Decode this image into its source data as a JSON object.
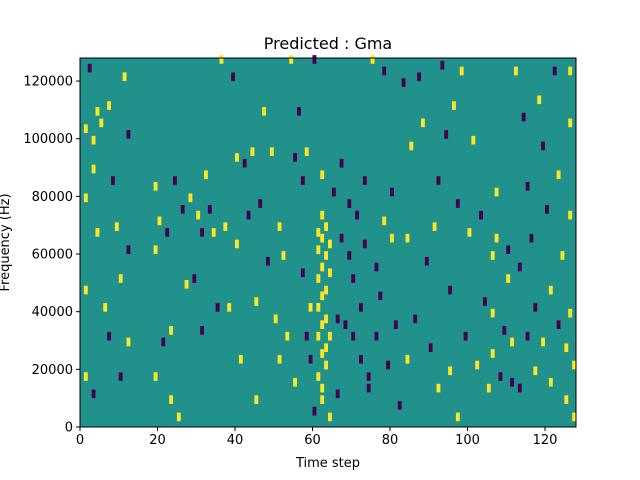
{
  "chart_data": {
    "type": "heatmap",
    "title": "Predicted : Gma",
    "xlabel": "Time step",
    "ylabel": "Frequency (Hz)",
    "xlim": [
      0,
      128
    ],
    "ylim": [
      0,
      128000
    ],
    "x_ticks": [
      "0",
      "20",
      "40",
      "60",
      "80",
      "100",
      "120"
    ],
    "y_ticks": [
      "0",
      "20000",
      "40000",
      "60000",
      "80000",
      "100000",
      "120000"
    ],
    "grid": false,
    "levels": [
      -1,
      0,
      1
    ],
    "colors": {
      "-1": "#440154",
      "0": "#21918c",
      "1": "#fde725"
    },
    "background_value": 0,
    "cells": [
      {
        "x": 1,
        "y": 102000,
        "v": 1
      },
      {
        "x": 1,
        "y": 78000,
        "v": 1
      },
      {
        "x": 1,
        "y": 46000,
        "v": 1
      },
      {
        "x": 1,
        "y": 16000,
        "v": 1
      },
      {
        "x": 2,
        "y": 123000,
        "v": -1
      },
      {
        "x": 3,
        "y": 88000,
        "v": 1
      },
      {
        "x": 3,
        "y": 98000,
        "v": 1
      },
      {
        "x": 3,
        "y": 10000,
        "v": -1
      },
      {
        "x": 4,
        "y": 108000,
        "v": 1
      },
      {
        "x": 4,
        "y": 66000,
        "v": 1
      },
      {
        "x": 5,
        "y": 104000,
        "v": 1
      },
      {
        "x": 6,
        "y": 40000,
        "v": 1
      },
      {
        "x": 7,
        "y": 110000,
        "v": 1
      },
      {
        "x": 7,
        "y": 30000,
        "v": -1
      },
      {
        "x": 8,
        "y": 84000,
        "v": -1
      },
      {
        "x": 9,
        "y": 68000,
        "v": 1
      },
      {
        "x": 10,
        "y": 16000,
        "v": -1
      },
      {
        "x": 10,
        "y": 50000,
        "v": 1
      },
      {
        "x": 11,
        "y": 120000,
        "v": 1
      },
      {
        "x": 12,
        "y": 100000,
        "v": -1
      },
      {
        "x": 12,
        "y": 60000,
        "v": -1
      },
      {
        "x": 12,
        "y": 28000,
        "v": 1
      },
      {
        "x": 19,
        "y": 82000,
        "v": 1
      },
      {
        "x": 19,
        "y": 60000,
        "v": 1
      },
      {
        "x": 19,
        "y": 16000,
        "v": 1
      },
      {
        "x": 20,
        "y": 70000,
        "v": 1
      },
      {
        "x": 21,
        "y": 28000,
        "v": -1
      },
      {
        "x": 22,
        "y": 66000,
        "v": -1
      },
      {
        "x": 23,
        "y": 32000,
        "v": 1
      },
      {
        "x": 23,
        "y": 8000,
        "v": 1
      },
      {
        "x": 24,
        "y": 84000,
        "v": -1
      },
      {
        "x": 25,
        "y": 2000,
        "v": 1
      },
      {
        "x": 26,
        "y": 74000,
        "v": -1
      },
      {
        "x": 27,
        "y": 48000,
        "v": 1
      },
      {
        "x": 28,
        "y": 78000,
        "v": 1
      },
      {
        "x": 29,
        "y": 50000,
        "v": -1
      },
      {
        "x": 30,
        "y": 72000,
        "v": 1
      },
      {
        "x": 31,
        "y": 66000,
        "v": -1
      },
      {
        "x": 31,
        "y": 32000,
        "v": -1
      },
      {
        "x": 32,
        "y": 86000,
        "v": 1
      },
      {
        "x": 33,
        "y": 74000,
        "v": -1
      },
      {
        "x": 34,
        "y": 66000,
        "v": 1
      },
      {
        "x": 35,
        "y": 40000,
        "v": -1
      },
      {
        "x": 36,
        "y": 126000,
        "v": 1
      },
      {
        "x": 37,
        "y": 68000,
        "v": 1
      },
      {
        "x": 38,
        "y": 40000,
        "v": 1
      },
      {
        "x": 39,
        "y": 120000,
        "v": -1
      },
      {
        "x": 40,
        "y": 92000,
        "v": 1
      },
      {
        "x": 40,
        "y": 62000,
        "v": 1
      },
      {
        "x": 41,
        "y": 22000,
        "v": 1
      },
      {
        "x": 42,
        "y": 90000,
        "v": -1
      },
      {
        "x": 43,
        "y": 72000,
        "v": -1
      },
      {
        "x": 44,
        "y": 94000,
        "v": 1
      },
      {
        "x": 45,
        "y": 42000,
        "v": 1
      },
      {
        "x": 45,
        "y": 8000,
        "v": 1
      },
      {
        "x": 46,
        "y": 76000,
        "v": -1
      },
      {
        "x": 47,
        "y": 108000,
        "v": 1
      },
      {
        "x": 48,
        "y": 56000,
        "v": -1
      },
      {
        "x": 49,
        "y": 94000,
        "v": 1
      },
      {
        "x": 50,
        "y": 36000,
        "v": 1
      },
      {
        "x": 51,
        "y": 68000,
        "v": 1
      },
      {
        "x": 51,
        "y": 22000,
        "v": 1
      },
      {
        "x": 52,
        "y": 58000,
        "v": 1
      },
      {
        "x": 53,
        "y": 30000,
        "v": 1
      },
      {
        "x": 54,
        "y": 126000,
        "v": 1
      },
      {
        "x": 55,
        "y": 92000,
        "v": -1
      },
      {
        "x": 55,
        "y": 14000,
        "v": 1
      },
      {
        "x": 56,
        "y": 108000,
        "v": -1
      },
      {
        "x": 57,
        "y": 84000,
        "v": -1
      },
      {
        "x": 57,
        "y": 52000,
        "v": -1
      },
      {
        "x": 58,
        "y": 94000,
        "v": 1
      },
      {
        "x": 58,
        "y": 30000,
        "v": -1
      },
      {
        "x": 59,
        "y": 40000,
        "v": 1
      },
      {
        "x": 59,
        "y": 22000,
        "v": -1
      },
      {
        "x": 60,
        "y": 126000,
        "v": -1
      },
      {
        "x": 60,
        "y": 4000,
        "v": -1
      },
      {
        "x": 61,
        "y": 66000,
        "v": 1
      },
      {
        "x": 61,
        "y": 60000,
        "v": 1
      },
      {
        "x": 61,
        "y": 50000,
        "v": 1
      },
      {
        "x": 61,
        "y": 40000,
        "v": 1
      },
      {
        "x": 61,
        "y": 30000,
        "v": 1
      },
      {
        "x": 61,
        "y": 16000,
        "v": 1
      },
      {
        "x": 62,
        "y": 86000,
        "v": 1
      },
      {
        "x": 62,
        "y": 72000,
        "v": 1
      },
      {
        "x": 62,
        "y": 64000,
        "v": 1
      },
      {
        "x": 62,
        "y": 54000,
        "v": 1
      },
      {
        "x": 62,
        "y": 44000,
        "v": 1
      },
      {
        "x": 62,
        "y": 34000,
        "v": 1
      },
      {
        "x": 62,
        "y": 24000,
        "v": 1
      },
      {
        "x": 62,
        "y": 12000,
        "v": 1
      },
      {
        "x": 62,
        "y": 8000,
        "v": 1
      },
      {
        "x": 63,
        "y": 68000,
        "v": 1
      },
      {
        "x": 63,
        "y": 58000,
        "v": 1
      },
      {
        "x": 63,
        "y": 46000,
        "v": 1
      },
      {
        "x": 63,
        "y": 36000,
        "v": 1
      },
      {
        "x": 63,
        "y": 26000,
        "v": 1
      },
      {
        "x": 63,
        "y": 20000,
        "v": 1
      },
      {
        "x": 64,
        "y": 62000,
        "v": 1
      },
      {
        "x": 64,
        "y": 52000,
        "v": 1
      },
      {
        "x": 64,
        "y": 30000,
        "v": 1
      },
      {
        "x": 64,
        "y": 2000,
        "v": 1
      },
      {
        "x": 65,
        "y": 80000,
        "v": -1
      },
      {
        "x": 66,
        "y": 36000,
        "v": -1
      },
      {
        "x": 66,
        "y": 10000,
        "v": -1
      },
      {
        "x": 67,
        "y": 90000,
        "v": -1
      },
      {
        "x": 67,
        "y": 64000,
        "v": -1
      },
      {
        "x": 68,
        "y": 34000,
        "v": -1
      },
      {
        "x": 69,
        "y": 76000,
        "v": -1
      },
      {
        "x": 69,
        "y": 58000,
        "v": -1
      },
      {
        "x": 70,
        "y": 50000,
        "v": -1
      },
      {
        "x": 70,
        "y": 30000,
        "v": -1
      },
      {
        "x": 71,
        "y": 72000,
        "v": -1
      },
      {
        "x": 72,
        "y": 40000,
        "v": -1
      },
      {
        "x": 72,
        "y": 22000,
        "v": -1
      },
      {
        "x": 73,
        "y": 84000,
        "v": -1
      },
      {
        "x": 73,
        "y": 62000,
        "v": -1
      },
      {
        "x": 74,
        "y": 16000,
        "v": -1
      },
      {
        "x": 74,
        "y": 12000,
        "v": -1
      },
      {
        "x": 75,
        "y": 126000,
        "v": 1
      },
      {
        "x": 76,
        "y": 54000,
        "v": -1
      },
      {
        "x": 76,
        "y": 30000,
        "v": -1
      },
      {
        "x": 77,
        "y": 44000,
        "v": -1
      },
      {
        "x": 78,
        "y": 122000,
        "v": -1
      },
      {
        "x": 78,
        "y": 70000,
        "v": 1
      },
      {
        "x": 79,
        "y": 20000,
        "v": -1
      },
      {
        "x": 80,
        "y": 80000,
        "v": -1
      },
      {
        "x": 80,
        "y": 64000,
        "v": 1
      },
      {
        "x": 81,
        "y": 34000,
        "v": -1
      },
      {
        "x": 82,
        "y": 6000,
        "v": -1
      },
      {
        "x": 83,
        "y": 118000,
        "v": -1
      },
      {
        "x": 84,
        "y": 64000,
        "v": 1
      },
      {
        "x": 84,
        "y": 22000,
        "v": 1
      },
      {
        "x": 85,
        "y": 96000,
        "v": 1
      },
      {
        "x": 86,
        "y": 36000,
        "v": -1
      },
      {
        "x": 87,
        "y": 120000,
        "v": -1
      },
      {
        "x": 88,
        "y": 104000,
        "v": 1
      },
      {
        "x": 89,
        "y": 56000,
        "v": -1
      },
      {
        "x": 90,
        "y": 26000,
        "v": -1
      },
      {
        "x": 91,
        "y": 68000,
        "v": 1
      },
      {
        "x": 92,
        "y": 84000,
        "v": -1
      },
      {
        "x": 92,
        "y": 12000,
        "v": 1
      },
      {
        "x": 93,
        "y": 124000,
        "v": -1
      },
      {
        "x": 94,
        "y": 100000,
        "v": -1
      },
      {
        "x": 95,
        "y": 46000,
        "v": -1
      },
      {
        "x": 95,
        "y": 18000,
        "v": 1
      },
      {
        "x": 96,
        "y": 110000,
        "v": 1
      },
      {
        "x": 97,
        "y": 76000,
        "v": -1
      },
      {
        "x": 97,
        "y": 2000,
        "v": 1
      },
      {
        "x": 98,
        "y": 122000,
        "v": 1
      },
      {
        "x": 99,
        "y": 30000,
        "v": -1
      },
      {
        "x": 100,
        "y": 66000,
        "v": 1
      },
      {
        "x": 101,
        "y": 98000,
        "v": 1
      },
      {
        "x": 102,
        "y": 20000,
        "v": 1
      },
      {
        "x": 103,
        "y": 72000,
        "v": -1
      },
      {
        "x": 104,
        "y": 42000,
        "v": -1
      },
      {
        "x": 105,
        "y": 12000,
        "v": 1
      },
      {
        "x": 106,
        "y": 58000,
        "v": 1
      },
      {
        "x": 106,
        "y": 38000,
        "v": 1
      },
      {
        "x": 106,
        "y": 24000,
        "v": 1
      },
      {
        "x": 107,
        "y": 80000,
        "v": 1
      },
      {
        "x": 107,
        "y": 64000,
        "v": 1
      },
      {
        "x": 108,
        "y": 16000,
        "v": -1
      },
      {
        "x": 109,
        "y": 32000,
        "v": -1
      },
      {
        "x": 110,
        "y": 60000,
        "v": -1
      },
      {
        "x": 110,
        "y": 50000,
        "v": 1
      },
      {
        "x": 111,
        "y": 28000,
        "v": 1
      },
      {
        "x": 111,
        "y": 14000,
        "v": -1
      },
      {
        "x": 112,
        "y": 122000,
        "v": 1
      },
      {
        "x": 113,
        "y": 54000,
        "v": -1
      },
      {
        "x": 113,
        "y": 12000,
        "v": -1
      },
      {
        "x": 114,
        "y": 106000,
        "v": -1
      },
      {
        "x": 115,
        "y": 82000,
        "v": -1
      },
      {
        "x": 115,
        "y": 30000,
        "v": -1
      },
      {
        "x": 116,
        "y": 64000,
        "v": -1
      },
      {
        "x": 117,
        "y": 40000,
        "v": -1
      },
      {
        "x": 117,
        "y": 18000,
        "v": 1
      },
      {
        "x": 118,
        "y": 112000,
        "v": 1
      },
      {
        "x": 119,
        "y": 96000,
        "v": -1
      },
      {
        "x": 119,
        "y": 28000,
        "v": 1
      },
      {
        "x": 120,
        "y": 74000,
        "v": -1
      },
      {
        "x": 121,
        "y": 46000,
        "v": 1
      },
      {
        "x": 121,
        "y": 14000,
        "v": 1
      },
      {
        "x": 122,
        "y": 122000,
        "v": -1
      },
      {
        "x": 123,
        "y": 86000,
        "v": 1
      },
      {
        "x": 123,
        "y": 34000,
        "v": -1
      },
      {
        "x": 124,
        "y": 58000,
        "v": 1
      },
      {
        "x": 125,
        "y": 26000,
        "v": 1
      },
      {
        "x": 125,
        "y": 8000,
        "v": 1
      },
      {
        "x": 126,
        "y": 122000,
        "v": 1
      },
      {
        "x": 126,
        "y": 104000,
        "v": 1
      },
      {
        "x": 126,
        "y": 72000,
        "v": 1
      },
      {
        "x": 126,
        "y": 38000,
        "v": 1
      },
      {
        "x": 127,
        "y": 20000,
        "v": 1
      },
      {
        "x": 127,
        "y": 2000,
        "v": 1
      }
    ]
  }
}
